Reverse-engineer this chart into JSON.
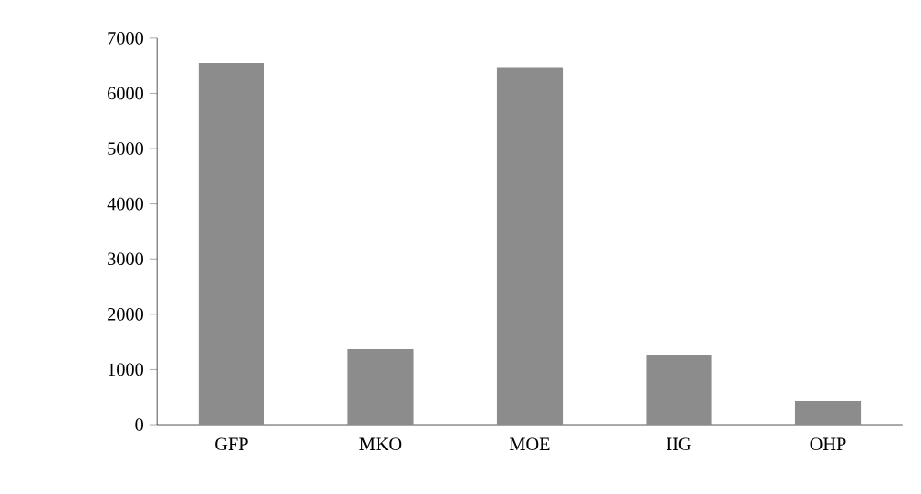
{
  "chart_data": {
    "type": "bar",
    "categories": [
      "GFP",
      "MKO",
      "MOE",
      "IIG",
      "OHP"
    ],
    "values": [
      6550,
      1370,
      6460,
      1260,
      430
    ],
    "color": "#8c8c8c",
    "ylim": [
      0,
      7000
    ],
    "yticks": [
      0,
      1000,
      2000,
      3000,
      4000,
      5000,
      6000,
      7000
    ],
    "grid": false
  }
}
